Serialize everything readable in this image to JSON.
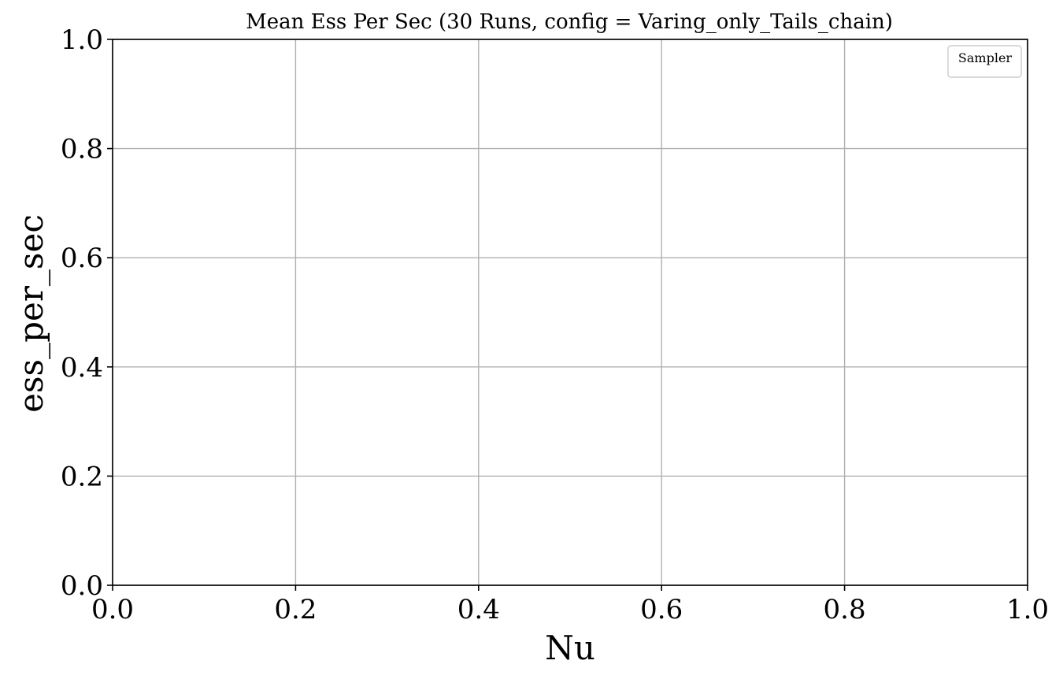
{
  "chart_data": {
    "type": "line",
    "title": "Mean Ess Per Sec (30 Runs, config = Varing_only_Tails_chain)",
    "xlabel": "Nu",
    "ylabel": "ess_per_sec",
    "xlim": [
      0.0,
      1.0
    ],
    "ylim": [
      0.0,
      1.0
    ],
    "xticks": [
      "0.0",
      "0.2",
      "0.4",
      "0.6",
      "0.8",
      "1.0"
    ],
    "yticks": [
      "0.0",
      "0.2",
      "0.4",
      "0.6",
      "0.8",
      "1.0"
    ],
    "grid": true,
    "legend": {
      "title": "Sampler",
      "placement": "upper-right",
      "entries": []
    },
    "series": []
  }
}
